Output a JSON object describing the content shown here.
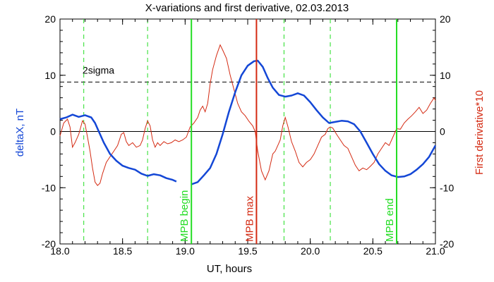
{
  "chart_data": {
    "type": "line",
    "title": "X-variations and first derivative, 02.03.2013",
    "xlabel": "UT, hours",
    "ylabel_left": "deltaX, nT",
    "ylabel_right": "First derivative*10",
    "xlim": [
      18.0,
      21.0
    ],
    "ylim_left": [
      -20,
      20
    ],
    "ylim_right": [
      -20,
      20
    ],
    "x_ticks": [
      18.0,
      18.5,
      19.0,
      19.5,
      20.0,
      20.5,
      21.0
    ],
    "x_tick_labels": [
      "18.0",
      "18.5",
      "19.0",
      "19.5",
      "20.0",
      "20.5",
      "21.0"
    ],
    "y_ticks": [
      20,
      10,
      0,
      -10,
      -20
    ],
    "y_tick_labels": [
      "20",
      "10",
      "0",
      "-10",
      "-20"
    ],
    "colors": {
      "deltaX": "#1447d6",
      "derivative": "#d42a12",
      "mpb_lines": "#22dd22",
      "mpb_max_line": "#d42a12",
      "threshold": "#000000"
    },
    "threshold": {
      "value": 8.8,
      "label": "2sigma"
    },
    "mpb_lines": [
      {
        "x": 19.05,
        "label": "MPB begin",
        "color": "#22dd22"
      },
      {
        "x": 19.57,
        "label": "MPB max",
        "color": "#d42a12"
      },
      {
        "x": 20.69,
        "label": "MPB end",
        "color": "#22dd22"
      }
    ],
    "dashed_verticals": [
      18.19,
      18.7,
      19.79,
      20.16
    ],
    "series": [
      {
        "name": "deltaX",
        "axis": "left",
        "points": [
          [
            18.0,
            2.2
          ],
          [
            18.05,
            2.5
          ],
          [
            18.1,
            3.0
          ],
          [
            18.15,
            2.6
          ],
          [
            18.2,
            2.9
          ],
          [
            18.25,
            2.5
          ],
          [
            18.28,
            1.5
          ],
          [
            18.31,
            0.0
          ],
          [
            18.35,
            -2.0
          ],
          [
            18.4,
            -4.0
          ],
          [
            18.45,
            -5.2
          ],
          [
            18.5,
            -6.1
          ],
          [
            18.55,
            -6.5
          ],
          [
            18.6,
            -6.8
          ],
          [
            18.65,
            -7.5
          ],
          [
            18.7,
            -7.9
          ],
          [
            18.75,
            -7.6
          ],
          [
            18.8,
            -7.8
          ],
          [
            18.85,
            -8.3
          ],
          [
            18.9,
            -8.6
          ],
          [
            18.93,
            -8.9
          ],
          [
            18.96,
            null
          ],
          [
            19.0,
            null
          ],
          [
            19.05,
            -9.4
          ],
          [
            19.1,
            -9.0
          ],
          [
            19.15,
            -7.8
          ],
          [
            19.2,
            -6.5
          ],
          [
            19.25,
            -4.0
          ],
          [
            19.3,
            -0.5
          ],
          [
            19.35,
            3.5
          ],
          [
            19.4,
            7.0
          ],
          [
            19.45,
            10.0
          ],
          [
            19.5,
            11.7
          ],
          [
            19.55,
            12.5
          ],
          [
            19.58,
            12.6
          ],
          [
            19.62,
            11.5
          ],
          [
            19.66,
            9.5
          ],
          [
            19.7,
            7.8
          ],
          [
            19.75,
            6.5
          ],
          [
            19.8,
            6.2
          ],
          [
            19.85,
            6.4
          ],
          [
            19.9,
            6.8
          ],
          [
            19.95,
            6.4
          ],
          [
            20.0,
            5.2
          ],
          [
            20.05,
            3.8
          ],
          [
            20.1,
            2.5
          ],
          [
            20.15,
            1.5
          ],
          [
            20.2,
            1.7
          ],
          [
            20.25,
            1.9
          ],
          [
            20.3,
            1.8
          ],
          [
            20.35,
            1.3
          ],
          [
            20.4,
            0.0
          ],
          [
            20.45,
            -2.0
          ],
          [
            20.5,
            -4.0
          ],
          [
            20.55,
            -5.8
          ],
          [
            20.6,
            -7.0
          ],
          [
            20.65,
            -7.8
          ],
          [
            20.7,
            -8.1
          ],
          [
            20.75,
            -8.0
          ],
          [
            20.8,
            -7.6
          ],
          [
            20.85,
            -6.8
          ],
          [
            20.9,
            -5.8
          ],
          [
            20.95,
            -4.5
          ],
          [
            21.0,
            -2.5
          ]
        ]
      },
      {
        "name": "First derivative*10",
        "axis": "right",
        "points": [
          [
            18.0,
            -0.8
          ],
          [
            18.03,
            1.5
          ],
          [
            18.06,
            2.2
          ],
          [
            18.08,
            0.8
          ],
          [
            18.1,
            -2.8
          ],
          [
            18.12,
            -2.0
          ],
          [
            18.15,
            -0.5
          ],
          [
            18.18,
            1.9
          ],
          [
            18.2,
            1.3
          ],
          [
            18.22,
            -1.0
          ],
          [
            18.24,
            -3.5
          ],
          [
            18.26,
            -6.5
          ],
          [
            18.28,
            -9.0
          ],
          [
            18.3,
            -9.6
          ],
          [
            18.32,
            -9.2
          ],
          [
            18.34,
            -7.5
          ],
          [
            18.37,
            -5.5
          ],
          [
            18.4,
            -4.5
          ],
          [
            18.43,
            -3.5
          ],
          [
            18.46,
            -2.5
          ],
          [
            18.49,
            -0.5
          ],
          [
            18.51,
            -0.2
          ],
          [
            18.53,
            -1.8
          ],
          [
            18.55,
            -2.5
          ],
          [
            18.58,
            -2.0
          ],
          [
            18.61,
            -2.8
          ],
          [
            18.64,
            -2.5
          ],
          [
            18.66,
            -1.5
          ],
          [
            18.68,
            0.5
          ],
          [
            18.7,
            1.9
          ],
          [
            18.72,
            1.0
          ],
          [
            18.74,
            -1.5
          ],
          [
            18.76,
            -2.8
          ],
          [
            18.78,
            -2.0
          ],
          [
            18.8,
            -2.5
          ],
          [
            18.83,
            -1.8
          ],
          [
            18.86,
            -2.2
          ],
          [
            18.89,
            -2.0
          ],
          [
            18.92,
            -1.5
          ],
          [
            18.95,
            -1.8
          ],
          [
            18.98,
            -1.5
          ],
          [
            19.01,
            -1.0
          ],
          [
            19.04,
            0.8
          ],
          [
            19.07,
            1.5
          ],
          [
            19.1,
            2.5
          ],
          [
            19.12,
            3.8
          ],
          [
            19.14,
            4.5
          ],
          [
            19.16,
            3.5
          ],
          [
            19.18,
            5.0
          ],
          [
            19.2,
            8.5
          ],
          [
            19.22,
            11.0
          ],
          [
            19.25,
            13.5
          ],
          [
            19.28,
            15.4
          ],
          [
            19.3,
            14.5
          ],
          [
            19.33,
            13.0
          ],
          [
            19.36,
            10.0
          ],
          [
            19.39,
            7.5
          ],
          [
            19.42,
            5.0
          ],
          [
            19.45,
            3.5
          ],
          [
            19.48,
            2.8
          ],
          [
            19.51,
            1.8
          ],
          [
            19.54,
            1.0
          ],
          [
            19.56,
            0.0
          ],
          [
            19.58,
            -3.5
          ],
          [
            19.61,
            -7.0
          ],
          [
            19.64,
            -8.6
          ],
          [
            19.67,
            -7.0
          ],
          [
            19.7,
            -4.0
          ],
          [
            19.72,
            -3.5
          ],
          [
            19.74,
            -2.5
          ],
          [
            19.76,
            -1.5
          ],
          [
            19.78,
            1.0
          ],
          [
            19.8,
            2.5
          ],
          [
            19.82,
            1.0
          ],
          [
            19.85,
            -1.8
          ],
          [
            19.88,
            -3.5
          ],
          [
            19.91,
            -5.5
          ],
          [
            19.94,
            -6.3
          ],
          [
            19.97,
            -5.5
          ],
          [
            20.0,
            -5.0
          ],
          [
            20.03,
            -4.0
          ],
          [
            20.06,
            -2.5
          ],
          [
            20.09,
            -1.0
          ],
          [
            20.12,
            -0.5
          ],
          [
            20.14,
            0.5
          ],
          [
            20.16,
            0.8
          ],
          [
            20.18,
            0.6
          ],
          [
            20.21,
            -0.5
          ],
          [
            20.24,
            -1.5
          ],
          [
            20.27,
            -2.5
          ],
          [
            20.3,
            -3.0
          ],
          [
            20.33,
            -4.5
          ],
          [
            20.36,
            -6.0
          ],
          [
            20.39,
            -7.0
          ],
          [
            20.42,
            -6.5
          ],
          [
            20.45,
            -6.8
          ],
          [
            20.48,
            -6.2
          ],
          [
            20.51,
            -5.5
          ],
          [
            20.54,
            -4.0
          ],
          [
            20.57,
            -3.0
          ],
          [
            20.6,
            -2.0
          ],
          [
            20.63,
            -2.5
          ],
          [
            20.66,
            -1.0
          ],
          [
            20.69,
            0.5
          ],
          [
            20.72,
            0.4
          ],
          [
            20.75,
            1.5
          ],
          [
            20.78,
            2.2
          ],
          [
            20.81,
            2.8
          ],
          [
            20.84,
            3.5
          ],
          [
            20.87,
            4.3
          ],
          [
            20.9,
            3.2
          ],
          [
            20.93,
            3.8
          ],
          [
            20.96,
            5.0
          ],
          [
            20.99,
            6.0
          ],
          [
            21.0,
            5.5
          ]
        ]
      }
    ]
  }
}
